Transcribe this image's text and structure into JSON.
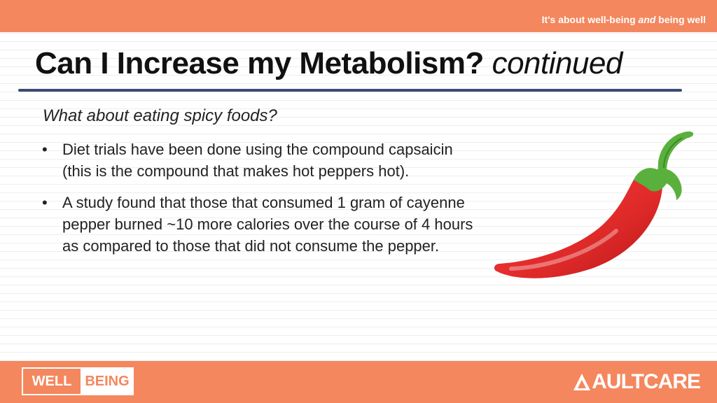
{
  "header": {
    "tagline_pre": "It's about well-being ",
    "tagline_em": "and",
    "tagline_post": " being well"
  },
  "slide": {
    "title": "Can I Increase my Metabolism?",
    "title_suffix": "continued",
    "subtitle": "What about eating spicy foods?",
    "bullet_glyph": "•",
    "bullets": [
      "Diet trials have been done using the compound capsaicin (this is the compound that makes hot peppers hot).",
      "A study found that those that consumed 1 gram of cayenne pepper burned ~10 more calories over the course of 4 hours as compared to those that did not consume the pepper."
    ],
    "image_icon": "red-chili-pepper"
  },
  "footer": {
    "well_label": "WELL",
    "being_label": "BEING",
    "brand_icon": "aultcare-a-icon",
    "brand_label": "AULTCARE"
  },
  "colors": {
    "accent_orange": "#f4875e",
    "rule_navy": "#3c4a73",
    "pepper_red": "#e02a2a",
    "stem_green": "#5ab03c"
  }
}
